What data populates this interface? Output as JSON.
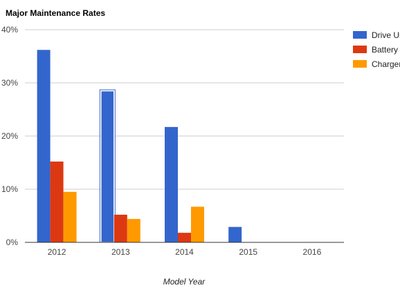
{
  "chart_data": {
    "type": "bar",
    "title": "Major Maintenance Rates",
    "xlabel": "Model Year",
    "ylabel": "",
    "categories": [
      "2012",
      "2013",
      "2014",
      "2015",
      "2016"
    ],
    "series": [
      {
        "name": "Drive Unit",
        "color": "#3366cc",
        "values": [
          36.2,
          28.5,
          21.7,
          2.9,
          0
        ]
      },
      {
        "name": "Battery",
        "color": "#dc3912",
        "values": [
          15.2,
          5.2,
          1.8,
          0,
          0
        ]
      },
      {
        "name": "Charger",
        "color": "#ff9900",
        "values": [
          9.5,
          4.4,
          6.7,
          0,
          0
        ]
      }
    ],
    "ylim": [
      0,
      40
    ],
    "yticks": [
      "0%",
      "10%",
      "20%",
      "30%",
      "40%"
    ],
    "ytick_values": [
      0,
      10,
      20,
      30,
      40
    ],
    "grid": true,
    "legend_position": "right",
    "highlighted": {
      "series": 0,
      "category": 1
    }
  }
}
